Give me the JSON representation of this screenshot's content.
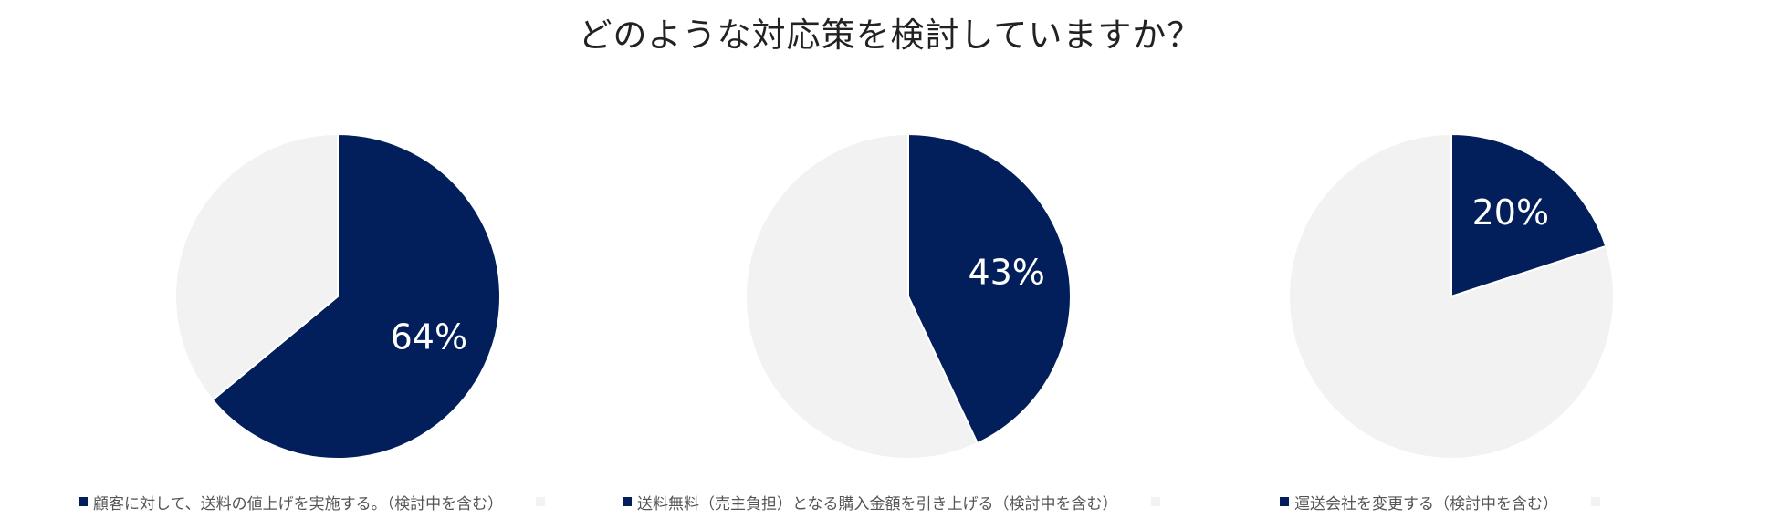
{
  "title": "どのような対応策を検討していますか？",
  "colors": {
    "primary": "#031F5B",
    "secondary": "#F2F2F2"
  },
  "chart_data": [
    {
      "type": "pie",
      "title": "",
      "slices": [
        {
          "label": "顧客に対して、送料の値上げを実施する。（検討中を含む）",
          "value": 64,
          "data_label": "64%"
        },
        {
          "label": "",
          "value": 36,
          "data_label": ""
        }
      ]
    },
    {
      "type": "pie",
      "title": "",
      "slices": [
        {
          "label": "送料無料（売主負担）となる購入金額を引き上げる（検討中を含む）",
          "value": 43,
          "data_label": "43%"
        },
        {
          "label": "",
          "value": 57,
          "data_label": ""
        }
      ]
    },
    {
      "type": "pie",
      "title": "",
      "slices": [
        {
          "label": "運送会社を変更する（検討中を含む）",
          "value": 20,
          "data_label": "20%"
        },
        {
          "label": "",
          "value": 80,
          "data_label": ""
        }
      ]
    }
  ]
}
